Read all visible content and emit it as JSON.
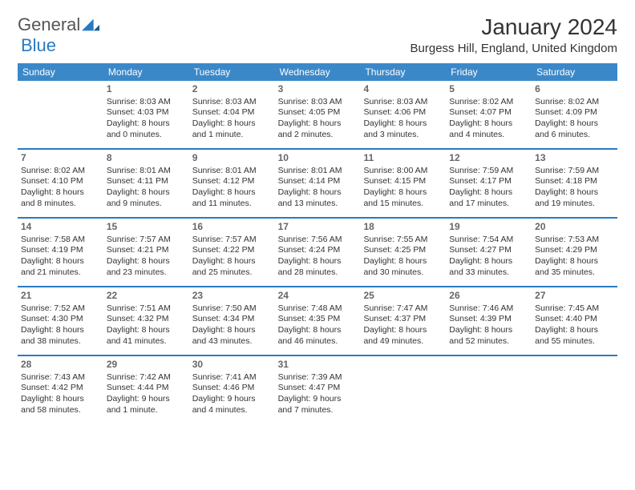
{
  "logo": {
    "general": "General",
    "blue": "Blue"
  },
  "title": "January 2024",
  "location": "Burgess Hill, England, United Kingdom",
  "colors": {
    "header_bg": "#3b88c9",
    "border": "#2a7ac0",
    "logo_blue": "#2a7ac0",
    "text": "#333333",
    "daynum": "#666666"
  },
  "daysOfWeek": [
    "Sunday",
    "Monday",
    "Tuesday",
    "Wednesday",
    "Thursday",
    "Friday",
    "Saturday"
  ],
  "weeks": [
    [
      {
        "n": "",
        "sr": "",
        "ss": "",
        "dl": ""
      },
      {
        "n": "1",
        "sr": "Sunrise: 8:03 AM",
        "ss": "Sunset: 4:03 PM",
        "dl": "Daylight: 8 hours and 0 minutes."
      },
      {
        "n": "2",
        "sr": "Sunrise: 8:03 AM",
        "ss": "Sunset: 4:04 PM",
        "dl": "Daylight: 8 hours and 1 minute."
      },
      {
        "n": "3",
        "sr": "Sunrise: 8:03 AM",
        "ss": "Sunset: 4:05 PM",
        "dl": "Daylight: 8 hours and 2 minutes."
      },
      {
        "n": "4",
        "sr": "Sunrise: 8:03 AM",
        "ss": "Sunset: 4:06 PM",
        "dl": "Daylight: 8 hours and 3 minutes."
      },
      {
        "n": "5",
        "sr": "Sunrise: 8:02 AM",
        "ss": "Sunset: 4:07 PM",
        "dl": "Daylight: 8 hours and 4 minutes."
      },
      {
        "n": "6",
        "sr": "Sunrise: 8:02 AM",
        "ss": "Sunset: 4:09 PM",
        "dl": "Daylight: 8 hours and 6 minutes."
      }
    ],
    [
      {
        "n": "7",
        "sr": "Sunrise: 8:02 AM",
        "ss": "Sunset: 4:10 PM",
        "dl": "Daylight: 8 hours and 8 minutes."
      },
      {
        "n": "8",
        "sr": "Sunrise: 8:01 AM",
        "ss": "Sunset: 4:11 PM",
        "dl": "Daylight: 8 hours and 9 minutes."
      },
      {
        "n": "9",
        "sr": "Sunrise: 8:01 AM",
        "ss": "Sunset: 4:12 PM",
        "dl": "Daylight: 8 hours and 11 minutes."
      },
      {
        "n": "10",
        "sr": "Sunrise: 8:01 AM",
        "ss": "Sunset: 4:14 PM",
        "dl": "Daylight: 8 hours and 13 minutes."
      },
      {
        "n": "11",
        "sr": "Sunrise: 8:00 AM",
        "ss": "Sunset: 4:15 PM",
        "dl": "Daylight: 8 hours and 15 minutes."
      },
      {
        "n": "12",
        "sr": "Sunrise: 7:59 AM",
        "ss": "Sunset: 4:17 PM",
        "dl": "Daylight: 8 hours and 17 minutes."
      },
      {
        "n": "13",
        "sr": "Sunrise: 7:59 AM",
        "ss": "Sunset: 4:18 PM",
        "dl": "Daylight: 8 hours and 19 minutes."
      }
    ],
    [
      {
        "n": "14",
        "sr": "Sunrise: 7:58 AM",
        "ss": "Sunset: 4:19 PM",
        "dl": "Daylight: 8 hours and 21 minutes."
      },
      {
        "n": "15",
        "sr": "Sunrise: 7:57 AM",
        "ss": "Sunset: 4:21 PM",
        "dl": "Daylight: 8 hours and 23 minutes."
      },
      {
        "n": "16",
        "sr": "Sunrise: 7:57 AM",
        "ss": "Sunset: 4:22 PM",
        "dl": "Daylight: 8 hours and 25 minutes."
      },
      {
        "n": "17",
        "sr": "Sunrise: 7:56 AM",
        "ss": "Sunset: 4:24 PM",
        "dl": "Daylight: 8 hours and 28 minutes."
      },
      {
        "n": "18",
        "sr": "Sunrise: 7:55 AM",
        "ss": "Sunset: 4:25 PM",
        "dl": "Daylight: 8 hours and 30 minutes."
      },
      {
        "n": "19",
        "sr": "Sunrise: 7:54 AM",
        "ss": "Sunset: 4:27 PM",
        "dl": "Daylight: 8 hours and 33 minutes."
      },
      {
        "n": "20",
        "sr": "Sunrise: 7:53 AM",
        "ss": "Sunset: 4:29 PM",
        "dl": "Daylight: 8 hours and 35 minutes."
      }
    ],
    [
      {
        "n": "21",
        "sr": "Sunrise: 7:52 AM",
        "ss": "Sunset: 4:30 PM",
        "dl": "Daylight: 8 hours and 38 minutes."
      },
      {
        "n": "22",
        "sr": "Sunrise: 7:51 AM",
        "ss": "Sunset: 4:32 PM",
        "dl": "Daylight: 8 hours and 41 minutes."
      },
      {
        "n": "23",
        "sr": "Sunrise: 7:50 AM",
        "ss": "Sunset: 4:34 PM",
        "dl": "Daylight: 8 hours and 43 minutes."
      },
      {
        "n": "24",
        "sr": "Sunrise: 7:48 AM",
        "ss": "Sunset: 4:35 PM",
        "dl": "Daylight: 8 hours and 46 minutes."
      },
      {
        "n": "25",
        "sr": "Sunrise: 7:47 AM",
        "ss": "Sunset: 4:37 PM",
        "dl": "Daylight: 8 hours and 49 minutes."
      },
      {
        "n": "26",
        "sr": "Sunrise: 7:46 AM",
        "ss": "Sunset: 4:39 PM",
        "dl": "Daylight: 8 hours and 52 minutes."
      },
      {
        "n": "27",
        "sr": "Sunrise: 7:45 AM",
        "ss": "Sunset: 4:40 PM",
        "dl": "Daylight: 8 hours and 55 minutes."
      }
    ],
    [
      {
        "n": "28",
        "sr": "Sunrise: 7:43 AM",
        "ss": "Sunset: 4:42 PM",
        "dl": "Daylight: 8 hours and 58 minutes."
      },
      {
        "n": "29",
        "sr": "Sunrise: 7:42 AM",
        "ss": "Sunset: 4:44 PM",
        "dl": "Daylight: 9 hours and 1 minute."
      },
      {
        "n": "30",
        "sr": "Sunrise: 7:41 AM",
        "ss": "Sunset: 4:46 PM",
        "dl": "Daylight: 9 hours and 4 minutes."
      },
      {
        "n": "31",
        "sr": "Sunrise: 7:39 AM",
        "ss": "Sunset: 4:47 PM",
        "dl": "Daylight: 9 hours and 7 minutes."
      },
      {
        "n": "",
        "sr": "",
        "ss": "",
        "dl": ""
      },
      {
        "n": "",
        "sr": "",
        "ss": "",
        "dl": ""
      },
      {
        "n": "",
        "sr": "",
        "ss": "",
        "dl": ""
      }
    ]
  ]
}
